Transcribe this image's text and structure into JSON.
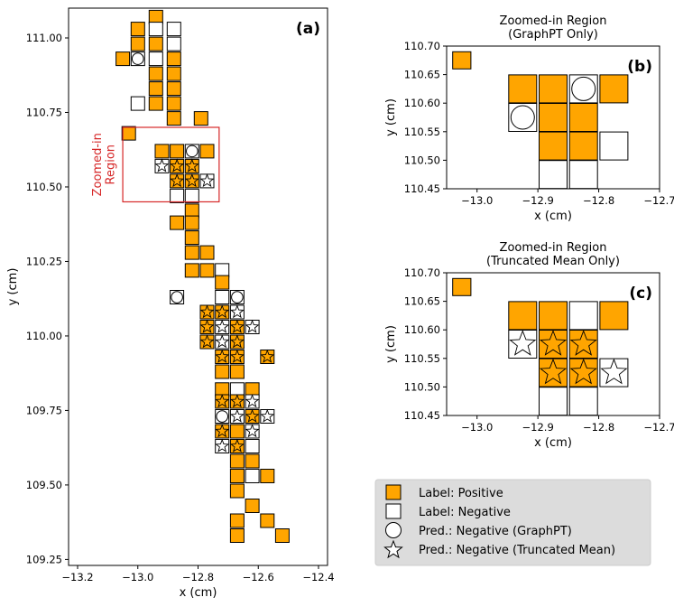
{
  "chart_data": [
    {
      "id": "a",
      "type": "scatter",
      "panel_label": "(a)",
      "title": "",
      "xlabel": "x (cm)",
      "ylabel": "y (cm)",
      "xlim": [
        -13.23,
        -12.37
      ],
      "ylim": [
        109.23,
        111.1
      ],
      "xticks": [
        -13.2,
        -13.0,
        -12.8,
        -12.6,
        -12.4
      ],
      "xtick_labels": [
        "−13.2",
        "−13.0",
        "−12.8",
        "−12.6",
        "−12.4"
      ],
      "yticks": [
        109.25,
        109.5,
        109.75,
        110.0,
        110.25,
        110.5,
        110.75,
        111.0
      ],
      "ytick_labels": [
        "109.25",
        "109.50",
        "109.75",
        "110.00",
        "110.25",
        "110.50",
        "110.75",
        "111.00"
      ],
      "annotation": "Zoomed-in\nRegion",
      "zoom_box": {
        "x": [
          -13.05,
          -12.73
        ],
        "y": [
          110.45,
          110.7
        ]
      },
      "cell_size": 0.05,
      "cells": [
        {
          "x": -12.94,
          "y": 111.07,
          "label": "positive",
          "pred": "none"
        },
        {
          "x": -13.0,
          "y": 111.03,
          "label": "positive",
          "pred": "none"
        },
        {
          "x": -12.94,
          "y": 111.03,
          "label": "negative",
          "pred": "none"
        },
        {
          "x": -12.88,
          "y": 111.03,
          "label": "negative",
          "pred": "none"
        },
        {
          "x": -13.0,
          "y": 110.98,
          "label": "positive",
          "pred": "none"
        },
        {
          "x": -12.94,
          "y": 110.98,
          "label": "positive",
          "pred": "none"
        },
        {
          "x": -12.88,
          "y": 110.98,
          "label": "negative",
          "pred": "none"
        },
        {
          "x": -12.94,
          "y": 110.93,
          "label": "negative",
          "pred": "none"
        },
        {
          "x": -12.88,
          "y": 110.93,
          "label": "positive",
          "pred": "none"
        },
        {
          "x": -13.05,
          "y": 110.93,
          "label": "positive",
          "pred": "none"
        },
        {
          "x": -13.0,
          "y": 110.93,
          "label": "negative",
          "pred": "negative_graphpt"
        },
        {
          "x": -12.94,
          "y": 110.88,
          "label": "positive",
          "pred": "none"
        },
        {
          "x": -12.88,
          "y": 110.88,
          "label": "positive",
          "pred": "none"
        },
        {
          "x": -12.94,
          "y": 110.83,
          "label": "positive",
          "pred": "none"
        },
        {
          "x": -12.88,
          "y": 110.83,
          "label": "positive",
          "pred": "none"
        },
        {
          "x": -13.0,
          "y": 110.78,
          "label": "negative",
          "pred": "none"
        },
        {
          "x": -12.94,
          "y": 110.78,
          "label": "positive",
          "pred": "none"
        },
        {
          "x": -12.88,
          "y": 110.78,
          "label": "positive",
          "pred": "none"
        },
        {
          "x": -12.88,
          "y": 110.73,
          "label": "positive",
          "pred": "none"
        },
        {
          "x": -12.79,
          "y": 110.73,
          "label": "positive",
          "pred": "none"
        },
        {
          "x": -13.03,
          "y": 110.68,
          "label": "positive",
          "pred": "none"
        },
        {
          "x": -12.92,
          "y": 110.62,
          "label": "positive",
          "pred": "none"
        },
        {
          "x": -12.87,
          "y": 110.62,
          "label": "positive",
          "pred": "none"
        },
        {
          "x": -12.82,
          "y": 110.62,
          "label": "negative",
          "pred": "negative_graphpt"
        },
        {
          "x": -12.77,
          "y": 110.62,
          "label": "positive",
          "pred": "none"
        },
        {
          "x": -12.92,
          "y": 110.57,
          "label": "negative",
          "pred": "negative_truncated"
        },
        {
          "x": -12.87,
          "y": 110.57,
          "label": "positive",
          "pred": "negative_truncated"
        },
        {
          "x": -12.82,
          "y": 110.57,
          "label": "positive",
          "pred": "negative_truncated"
        },
        {
          "x": -12.87,
          "y": 110.52,
          "label": "positive",
          "pred": "negative_truncated"
        },
        {
          "x": -12.82,
          "y": 110.52,
          "label": "positive",
          "pred": "negative_truncated"
        },
        {
          "x": -12.77,
          "y": 110.52,
          "label": "negative",
          "pred": "negative_truncated"
        },
        {
          "x": -12.87,
          "y": 110.47,
          "label": "negative",
          "pred": "none"
        },
        {
          "x": -12.82,
          "y": 110.47,
          "label": "negative",
          "pred": "none"
        },
        {
          "x": -12.82,
          "y": 110.42,
          "label": "positive",
          "pred": "none"
        },
        {
          "x": -12.87,
          "y": 110.38,
          "label": "positive",
          "pred": "none"
        },
        {
          "x": -12.82,
          "y": 110.38,
          "label": "positive",
          "pred": "none"
        },
        {
          "x": -12.82,
          "y": 110.33,
          "label": "positive",
          "pred": "none"
        },
        {
          "x": -12.82,
          "y": 110.28,
          "label": "positive",
          "pred": "none"
        },
        {
          "x": -12.77,
          "y": 110.28,
          "label": "positive",
          "pred": "none"
        },
        {
          "x": -12.82,
          "y": 110.22,
          "label": "positive",
          "pred": "none"
        },
        {
          "x": -12.77,
          "y": 110.22,
          "label": "positive",
          "pred": "none"
        },
        {
          "x": -12.72,
          "y": 110.22,
          "label": "negative",
          "pred": "none"
        },
        {
          "x": -12.72,
          "y": 110.18,
          "label": "positive",
          "pred": "none"
        },
        {
          "x": -12.87,
          "y": 110.13,
          "label": "negative",
          "pred": "negative_graphpt"
        },
        {
          "x": -12.72,
          "y": 110.13,
          "label": "negative",
          "pred": "none"
        },
        {
          "x": -12.67,
          "y": 110.13,
          "label": "negative",
          "pred": "negative_graphpt"
        },
        {
          "x": -12.77,
          "y": 110.08,
          "label": "positive",
          "pred": "negative_truncated"
        },
        {
          "x": -12.72,
          "y": 110.08,
          "label": "positive",
          "pred": "negative_truncated"
        },
        {
          "x": -12.67,
          "y": 110.08,
          "label": "negative",
          "pred": "negative_truncated"
        },
        {
          "x": -12.77,
          "y": 110.03,
          "label": "positive",
          "pred": "negative_truncated"
        },
        {
          "x": -12.72,
          "y": 110.03,
          "label": "negative",
          "pred": "negative_truncated"
        },
        {
          "x": -12.67,
          "y": 110.03,
          "label": "positive",
          "pred": "negative_truncated"
        },
        {
          "x": -12.62,
          "y": 110.03,
          "label": "negative",
          "pred": "negative_truncated"
        },
        {
          "x": -12.77,
          "y": 109.98,
          "label": "positive",
          "pred": "negative_truncated"
        },
        {
          "x": -12.72,
          "y": 109.98,
          "label": "negative",
          "pred": "negative_truncated"
        },
        {
          "x": -12.67,
          "y": 109.98,
          "label": "positive",
          "pred": "negative_truncated"
        },
        {
          "x": -12.72,
          "y": 109.93,
          "label": "positive",
          "pred": "negative_truncated"
        },
        {
          "x": -12.67,
          "y": 109.93,
          "label": "positive",
          "pred": "negative_truncated"
        },
        {
          "x": -12.57,
          "y": 109.93,
          "label": "positive",
          "pred": "negative_truncated"
        },
        {
          "x": -12.72,
          "y": 109.88,
          "label": "positive",
          "pred": "none"
        },
        {
          "x": -12.67,
          "y": 109.88,
          "label": "positive",
          "pred": "none"
        },
        {
          "x": -12.72,
          "y": 109.82,
          "label": "positive",
          "pred": "none"
        },
        {
          "x": -12.67,
          "y": 109.82,
          "label": "negative",
          "pred": "none"
        },
        {
          "x": -12.62,
          "y": 109.82,
          "label": "positive",
          "pred": "none"
        },
        {
          "x": -12.72,
          "y": 109.78,
          "label": "positive",
          "pred": "negative_truncated"
        },
        {
          "x": -12.67,
          "y": 109.78,
          "label": "positive",
          "pred": "negative_truncated"
        },
        {
          "x": -12.62,
          "y": 109.78,
          "label": "negative",
          "pred": "negative_truncated"
        },
        {
          "x": -12.72,
          "y": 109.73,
          "label": "negative",
          "pred": "negative_graphpt"
        },
        {
          "x": -12.67,
          "y": 109.73,
          "label": "negative",
          "pred": "negative_truncated"
        },
        {
          "x": -12.62,
          "y": 109.73,
          "label": "positive",
          "pred": "negative_truncated"
        },
        {
          "x": -12.57,
          "y": 109.73,
          "label": "negative",
          "pred": "negative_truncated"
        },
        {
          "x": -12.72,
          "y": 109.68,
          "label": "positive",
          "pred": "negative_truncated"
        },
        {
          "x": -12.67,
          "y": 109.68,
          "label": "positive",
          "pred": "none"
        },
        {
          "x": -12.62,
          "y": 109.68,
          "label": "negative",
          "pred": "negative_truncated"
        },
        {
          "x": -12.72,
          "y": 109.63,
          "label": "negative",
          "pred": "negative_truncated"
        },
        {
          "x": -12.67,
          "y": 109.63,
          "label": "positive",
          "pred": "negative_truncated"
        },
        {
          "x": -12.62,
          "y": 109.63,
          "label": "negative",
          "pred": "none"
        },
        {
          "x": -12.67,
          "y": 109.58,
          "label": "positive",
          "pred": "none"
        },
        {
          "x": -12.62,
          "y": 109.58,
          "label": "positive",
          "pred": "none"
        },
        {
          "x": -12.67,
          "y": 109.53,
          "label": "positive",
          "pred": "none"
        },
        {
          "x": -12.62,
          "y": 109.53,
          "label": "negative",
          "pred": "none"
        },
        {
          "x": -12.57,
          "y": 109.53,
          "label": "positive",
          "pred": "none"
        },
        {
          "x": -12.67,
          "y": 109.48,
          "label": "positive",
          "pred": "none"
        },
        {
          "x": -12.62,
          "y": 109.43,
          "label": "positive",
          "pred": "none"
        },
        {
          "x": -12.67,
          "y": 109.38,
          "label": "positive",
          "pred": "none"
        },
        {
          "x": -12.57,
          "y": 109.38,
          "label": "positive",
          "pred": "none"
        },
        {
          "x": -12.67,
          "y": 109.33,
          "label": "positive",
          "pred": "none"
        },
        {
          "x": -12.52,
          "y": 109.33,
          "label": "positive",
          "pred": "none"
        }
      ]
    },
    {
      "id": "b",
      "type": "scatter",
      "panel_label": "(b)",
      "title": "Zoomed-in Region\n(GraphPT Only)",
      "xlabel": "x (cm)",
      "ylabel": "y (cm)",
      "xlim": [
        -13.05,
        -12.7
      ],
      "ylim": [
        110.45,
        110.7
      ],
      "xticks": [
        -13.0,
        -12.9,
        -12.8,
        -12.7
      ],
      "xtick_labels": [
        "−13.0",
        "−12.9",
        "−12.8",
        "−12.7"
      ],
      "yticks": [
        110.45,
        110.5,
        110.55,
        110.6,
        110.65,
        110.7
      ],
      "ytick_labels": [
        "110.45",
        "110.50",
        "110.55",
        "110.60",
        "110.65",
        "110.70"
      ],
      "cell_size": 0.03,
      "cells": [
        {
          "x": -13.025,
          "y": 110.675,
          "label": "positive",
          "pred": "none"
        },
        {
          "x": -12.925,
          "y": 110.625,
          "label": "positive",
          "pred": "none"
        },
        {
          "x": -12.875,
          "y": 110.625,
          "label": "positive",
          "pred": "none"
        },
        {
          "x": -12.825,
          "y": 110.625,
          "label": "negative",
          "pred": "negative_graphpt"
        },
        {
          "x": -12.775,
          "y": 110.625,
          "label": "positive",
          "pred": "none"
        },
        {
          "x": -12.925,
          "y": 110.575,
          "label": "negative",
          "pred": "negative_graphpt"
        },
        {
          "x": -12.875,
          "y": 110.575,
          "label": "positive",
          "pred": "none"
        },
        {
          "x": -12.825,
          "y": 110.575,
          "label": "positive",
          "pred": "none"
        },
        {
          "x": -12.875,
          "y": 110.525,
          "label": "positive",
          "pred": "none"
        },
        {
          "x": -12.825,
          "y": 110.525,
          "label": "positive",
          "pred": "none"
        },
        {
          "x": -12.775,
          "y": 110.525,
          "label": "negative",
          "pred": "none"
        },
        {
          "x": -12.875,
          "y": 110.475,
          "label": "negative",
          "pred": "none"
        },
        {
          "x": -12.825,
          "y": 110.475,
          "label": "negative",
          "pred": "none"
        }
      ]
    },
    {
      "id": "c",
      "type": "scatter",
      "panel_label": "(c)",
      "title": "Zoomed-in Region\n(Truncated Mean Only)",
      "xlabel": "x (cm)",
      "ylabel": "y (cm)",
      "xlim": [
        -13.05,
        -12.7
      ],
      "ylim": [
        110.45,
        110.7
      ],
      "xticks": [
        -13.0,
        -12.9,
        -12.8,
        -12.7
      ],
      "xtick_labels": [
        "−13.0",
        "−12.9",
        "−12.8",
        "−12.7"
      ],
      "yticks": [
        110.45,
        110.5,
        110.55,
        110.6,
        110.65,
        110.7
      ],
      "ytick_labels": [
        "110.45",
        "110.50",
        "110.55",
        "110.60",
        "110.65",
        "110.70"
      ],
      "cell_size": 0.03,
      "cells": [
        {
          "x": -13.025,
          "y": 110.675,
          "label": "positive",
          "pred": "none"
        },
        {
          "x": -12.925,
          "y": 110.625,
          "label": "positive",
          "pred": "none"
        },
        {
          "x": -12.875,
          "y": 110.625,
          "label": "positive",
          "pred": "none"
        },
        {
          "x": -12.825,
          "y": 110.625,
          "label": "negative",
          "pred": "none"
        },
        {
          "x": -12.775,
          "y": 110.625,
          "label": "positive",
          "pred": "none"
        },
        {
          "x": -12.925,
          "y": 110.575,
          "label": "negative",
          "pred": "negative_truncated"
        },
        {
          "x": -12.875,
          "y": 110.575,
          "label": "positive",
          "pred": "negative_truncated"
        },
        {
          "x": -12.825,
          "y": 110.575,
          "label": "positive",
          "pred": "negative_truncated"
        },
        {
          "x": -12.875,
          "y": 110.525,
          "label": "positive",
          "pred": "negative_truncated"
        },
        {
          "x": -12.825,
          "y": 110.525,
          "label": "positive",
          "pred": "negative_truncated"
        },
        {
          "x": -12.775,
          "y": 110.525,
          "label": "negative",
          "pred": "negative_truncated"
        },
        {
          "x": -12.875,
          "y": 110.475,
          "label": "negative",
          "pred": "none"
        },
        {
          "x": -12.825,
          "y": 110.475,
          "label": "negative",
          "pred": "none"
        }
      ]
    }
  ],
  "legend": {
    "placement": "bottom-right",
    "items": [
      {
        "marker": "square-filled",
        "text": "Label: Positive"
      },
      {
        "marker": "square-empty",
        "text": "Label: Negative"
      },
      {
        "marker": "circle",
        "text": "Pred.: Negative (GraphPT)"
      },
      {
        "marker": "star",
        "text": "Pred.: Negative (Truncated Mean)"
      }
    ]
  },
  "colors": {
    "positive": "#FFA500",
    "negative": "#FFFFFF",
    "edge": "#000000",
    "zoom_box": "#D62728",
    "annotation": "#D62728",
    "legend_bg": "#DCDCDC"
  }
}
